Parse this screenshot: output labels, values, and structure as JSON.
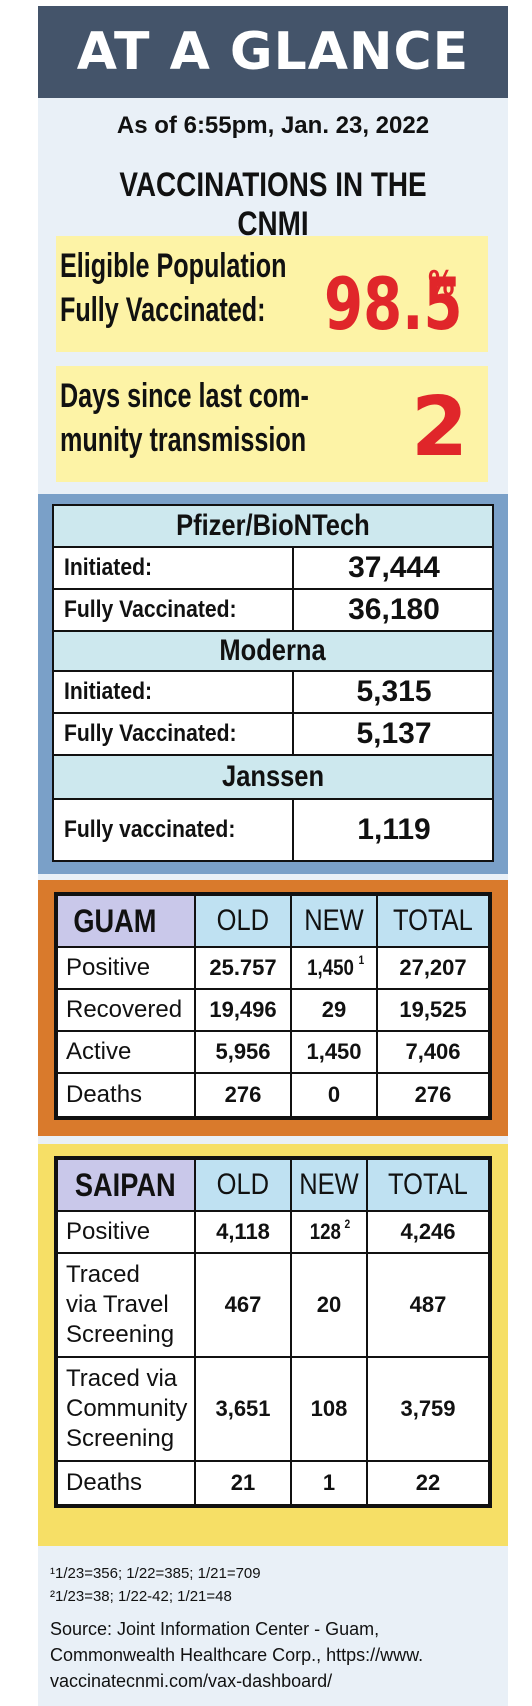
{
  "header": {
    "title": "AT A GLANCE",
    "as_of": "As of 6:55pm, Jan. 23, 2022",
    "section_title": "VACCINATIONS IN THE CNMI"
  },
  "highlights": {
    "eligible": {
      "label_line1": "Eligible Population",
      "label_line2": "Fully Vaccinated:",
      "value": "98.5",
      "unit": "%"
    },
    "days": {
      "label_line1": "Days since last com-",
      "label_line2": "munity transmission",
      "value": "2"
    }
  },
  "vaccines": {
    "pfizer": {
      "name": "Pfizer/BioNTech",
      "initiated_label": "Initiated:",
      "initiated": "37,444",
      "fully_label": "Fully Vaccinated:",
      "fully": "36,180"
    },
    "moderna": {
      "name": "Moderna",
      "initiated_label": "Initiated:",
      "initiated": "5,315",
      "fully_label": "Fully Vaccinated:",
      "fully": "5,137"
    },
    "janssen": {
      "name": "Janssen",
      "fully_label": "Fully vaccinated:",
      "fully": "1,119"
    }
  },
  "guam": {
    "place": "GUAM",
    "cols": [
      "OLD",
      "NEW",
      "TOTAL"
    ],
    "rows": [
      {
        "label": "Positive",
        "old": "25.757",
        "new": "1,450",
        "new_sup": "1",
        "total": "27,207"
      },
      {
        "label": "Recovered",
        "old": "19,496",
        "new": "29",
        "total": "19,525"
      },
      {
        "label": "Active",
        "old": "5,956",
        "new": "1,450",
        "total": "7,406"
      },
      {
        "label": "Deaths",
        "old": "276",
        "new": "0",
        "total": "276"
      }
    ]
  },
  "saipan": {
    "place": "SAIPAN",
    "cols": [
      "OLD",
      "NEW",
      "TOTAL"
    ],
    "rows": [
      {
        "label": "Positive",
        "old": "4,118",
        "new": "128",
        "new_sup": "2",
        "total": "4,246"
      },
      {
        "label_lines": [
          "Traced",
          "via Travel",
          "Screening"
        ],
        "old": "467",
        "new": "20",
        "total": "487"
      },
      {
        "label_lines": [
          "Traced via",
          "Community",
          "Screening"
        ],
        "old": "3,651",
        "new": "108",
        "total": "3,759"
      },
      {
        "label": "Deaths",
        "old": "21",
        "new": "1",
        "total": "22"
      }
    ]
  },
  "footnotes": {
    "note1": "¹1/23=356; 1/22=385; 1/21=709",
    "note2": "²1/23=38; 1/22-42; 1/21=48"
  },
  "source": {
    "line1": "Source: Joint Information Center - Guam,",
    "line2": "Commonwealth Healthcare Corp., https://www.",
    "line3": "vaccinatecnmi.com/vax-dashboard/"
  },
  "colors": {
    "title_bar": "#44546a",
    "highlight_bg": "#fdf3a6",
    "highlight_red": "#e0262a",
    "vaccine_frame": "#7aa0c8",
    "vaccine_header": "#cde8ee",
    "guam_frame": "#d97a2c",
    "saipan_frame": "#f6df66",
    "col_header": "#bfe1f2",
    "place_header": "#c9c8ea"
  }
}
